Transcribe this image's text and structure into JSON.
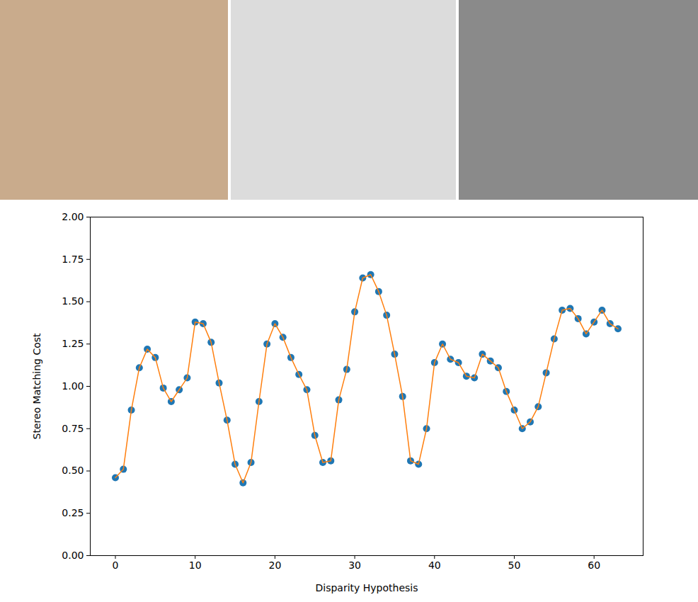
{
  "chart_data": {
    "type": "line",
    "x_label": "Disparity Hypothesis",
    "y_label": "Stereo Matching Cost",
    "x": [
      0,
      1,
      2,
      3,
      4,
      5,
      6,
      7,
      8,
      9,
      10,
      11,
      12,
      13,
      14,
      15,
      16,
      17,
      18,
      19,
      20,
      21,
      22,
      23,
      24,
      25,
      26,
      27,
      28,
      29,
      30,
      31,
      32,
      33,
      34,
      35,
      36,
      37,
      38,
      39,
      40,
      41,
      42,
      43,
      44,
      45,
      46,
      47,
      48,
      49,
      50,
      51,
      52,
      53,
      54,
      55,
      56,
      57,
      58,
      59,
      60,
      61,
      62,
      63
    ],
    "series": [
      {
        "type": "scatter",
        "color": "#1f77b4",
        "marker": "circle",
        "values": [
          0.46,
          0.51,
          0.86,
          1.11,
          1.22,
          1.17,
          0.99,
          0.91,
          0.98,
          1.05,
          1.38,
          1.37,
          1.26,
          1.02,
          0.8,
          0.54,
          0.43,
          0.55,
          0.91,
          1.25,
          1.37,
          1.29,
          1.17,
          1.07,
          0.98,
          0.71,
          0.55,
          0.56,
          0.92,
          1.1,
          1.44,
          1.64,
          1.66,
          1.56,
          1.42,
          1.19,
          0.94,
          0.56,
          0.54,
          0.75,
          1.14,
          1.25,
          1.16,
          1.14,
          1.06,
          1.05,
          1.19,
          1.15,
          1.11,
          0.97,
          0.86,
          0.75,
          0.79,
          0.88,
          1.08,
          1.28,
          1.45,
          1.46,
          1.4,
          1.31,
          1.38,
          1.45,
          1.37,
          1.34
        ]
      },
      {
        "type": "line",
        "color": "#ff7f0e",
        "line_style": "solid",
        "values": [
          0.46,
          0.51,
          0.86,
          1.11,
          1.22,
          1.17,
          0.99,
          0.91,
          0.98,
          1.05,
          1.38,
          1.37,
          1.26,
          1.02,
          0.8,
          0.54,
          0.43,
          0.55,
          0.91,
          1.25,
          1.37,
          1.29,
          1.17,
          1.07,
          0.98,
          0.71,
          0.55,
          0.56,
          0.92,
          1.1,
          1.44,
          1.64,
          1.66,
          1.56,
          1.42,
          1.19,
          0.94,
          0.56,
          0.54,
          0.75,
          1.14,
          1.25,
          1.16,
          1.14,
          1.06,
          1.05,
          1.19,
          1.15,
          1.11,
          0.97,
          0.86,
          0.75,
          0.79,
          0.88,
          1.08,
          1.28,
          1.45,
          1.46,
          1.4,
          1.31,
          1.38,
          1.45,
          1.37,
          1.34
        ]
      }
    ],
    "xlim": [
      -3.15,
      66.15
    ],
    "xticks": [
      0,
      10,
      20,
      30,
      40,
      50,
      60
    ],
    "ylim": [
      0,
      2
    ],
    "yticks": [
      {
        "value": 0,
        "label": "0.00"
      },
      {
        "value": 0.25,
        "label": "0.25"
      },
      {
        "value": 0.5,
        "label": "0.50"
      },
      {
        "value": 0.75,
        "label": "0.75"
      },
      {
        "value": 1,
        "label": "1.00"
      },
      {
        "value": 1.25,
        "label": "1.25"
      },
      {
        "value": 1.5,
        "label": "1.50"
      },
      {
        "value": 1.75,
        "label": "1.75"
      },
      {
        "value": 2,
        "label": "2.00"
      }
    ],
    "grid": false
  }
}
